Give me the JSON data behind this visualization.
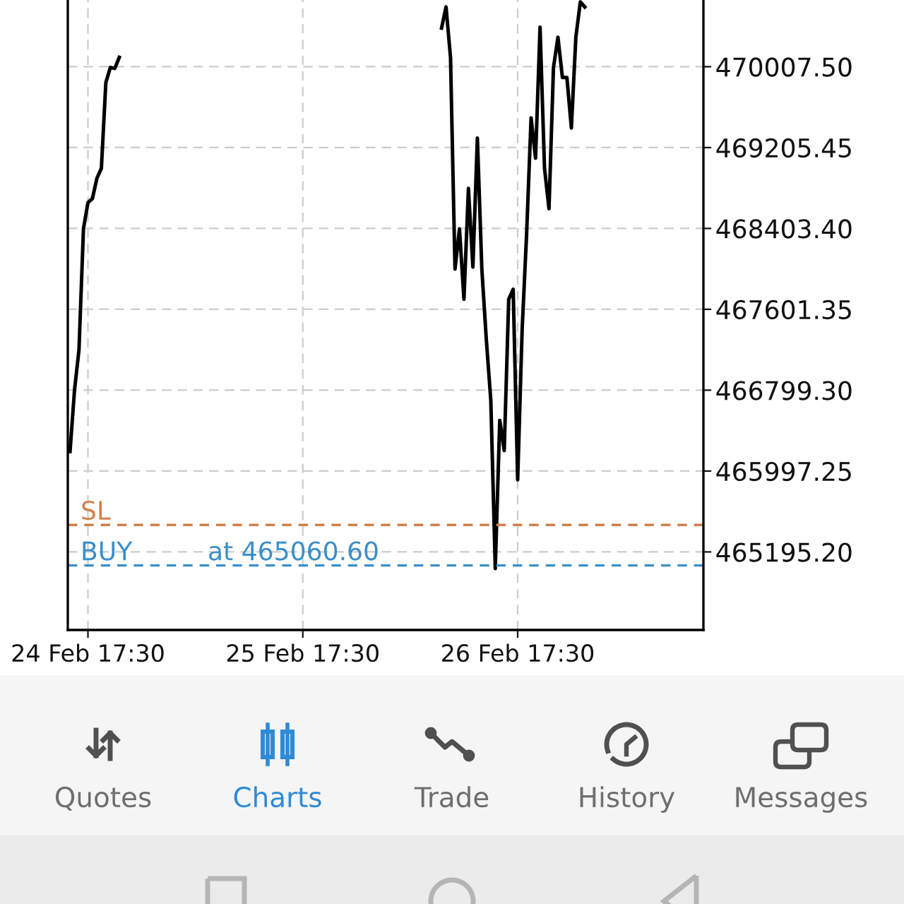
{
  "chart_data": [
    {
      "type": "line",
      "categories": [
        null,
        null,
        null,
        null,
        "24 Feb 17:30",
        null,
        null,
        null,
        null,
        null,
        null,
        null,
        null,
        null,
        null,
        null,
        null,
        null,
        null,
        null,
        null,
        null,
        null,
        null,
        null,
        null,
        null,
        null,
        null,
        null,
        null,
        null,
        null,
        null,
        null,
        null,
        null,
        null,
        null,
        null,
        null,
        null,
        null,
        null,
        null,
        null,
        null,
        null,
        null,
        null,
        null,
        null,
        "25 Feb 17:30",
        null,
        null,
        null,
        null,
        null,
        null,
        null,
        null,
        null,
        null,
        null,
        null,
        null,
        null,
        null,
        null,
        null,
        null,
        null,
        null,
        null,
        null,
        null,
        null,
        null,
        null,
        null,
        null,
        null,
        null,
        null,
        null,
        null,
        null,
        null,
        null,
        null,
        null,
        null,
        null,
        null,
        null,
        null,
        null,
        null,
        null,
        null,
        "26 Feb 17:30",
        null,
        null,
        null,
        null,
        null,
        null,
        null,
        null,
        null,
        null,
        null,
        null,
        null,
        null,
        null,
        null,
        null,
        null,
        null,
        null,
        null,
        null,
        null,
        null,
        null,
        null,
        null,
        null,
        null,
        null,
        null,
        null,
        null,
        null,
        null,
        null,
        null,
        null,
        null,
        null,
        null
      ],
      "series": [
        {
          "color": "#000000",
          "values": [
            466190,
            466800,
            467200,
            468400,
            468660,
            468700,
            468900,
            469000,
            469850,
            470000,
            469990,
            470100,
            null,
            null,
            null,
            null,
            null,
            null,
            null,
            null,
            null,
            null,
            null,
            null,
            null,
            null,
            null,
            null,
            null,
            null,
            null,
            null,
            null,
            null,
            null,
            null,
            null,
            null,
            null,
            null,
            null,
            null,
            null,
            null,
            null,
            null,
            null,
            null,
            null,
            null,
            null,
            null,
            null,
            null,
            null,
            null,
            null,
            null,
            null,
            null,
            null,
            null,
            null,
            null,
            null,
            null,
            null,
            null,
            null,
            null,
            null,
            null,
            null,
            null,
            null,
            null,
            null,
            null,
            null,
            null,
            null,
            null,
            null,
            470390,
            470600,
            470100,
            468000,
            468400,
            467700,
            468800,
            468020,
            469300,
            468000,
            467300,
            466700,
            465030,
            466500,
            466200,
            467700,
            467800,
            465910,
            467400,
            468350,
            469500,
            469100,
            470400,
            469000,
            468600,
            470000,
            470300,
            469900,
            469900,
            469400,
            470300,
            470650,
            470600,
            null,
            null,
            null,
            null,
            null,
            null,
            null,
            null,
            null,
            null,
            null,
            null,
            null,
            null,
            null,
            null,
            null,
            null,
            null,
            null,
            null,
            null,
            null,
            null,
            null,
            null
          ]
        }
      ],
      "ylim": [
        464421,
        470697
      ],
      "yticks": [
        {
          "value": 465195.2,
          "label": "465195.20"
        },
        {
          "value": 465997.25,
          "label": "465997.25"
        },
        {
          "value": 466799.3,
          "label": "466799.30"
        },
        {
          "value": 467601.35,
          "label": "467601.35"
        },
        {
          "value": 468403.4,
          "label": "468403.40"
        },
        {
          "value": 469205.45,
          "label": "469205.45"
        },
        {
          "value": 470007.5,
          "label": "470007.50"
        }
      ],
      "grid": true,
      "marker": "none",
      "line_style": "solid",
      "ref_lines": [
        {
          "axis": "y",
          "value": 465463,
          "label": "SL",
          "color": "#d0804a",
          "line_style": "dashed"
        },
        {
          "axis": "y",
          "value": 465060.6,
          "label": "BUY",
          "color": "#3a8fc8",
          "line_style": "dashed"
        }
      ],
      "annotations": [
        {
          "text": "at 465060.60",
          "y": 465060.6
        }
      ]
    },
    {
      "type": "other",
      "annotations": [
        "Quotes",
        "Charts",
        "Trade",
        "History",
        "Messages"
      ],
      "colors": [
        "#6e6e6e",
        "#2e8bd8",
        "#6e6e6e",
        "#6e6e6e",
        "#6e6e6e"
      ]
    }
  ]
}
